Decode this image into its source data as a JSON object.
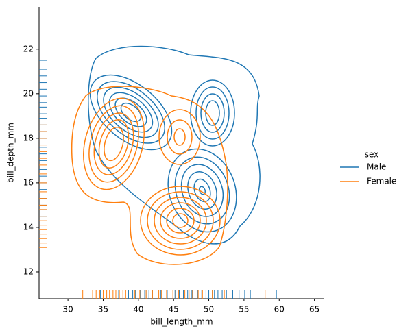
{
  "chart_data": {
    "type": "kde",
    "xlabel": "bill_length_mm",
    "ylabel": "bill_depth_mm",
    "xlim": [
      25.9,
      66.4
    ],
    "ylim": [
      10.8,
      23.9
    ],
    "xticks": [
      30,
      35,
      40,
      45,
      50,
      55,
      60,
      65
    ],
    "yticks": [
      12,
      14,
      16,
      18,
      20,
      22
    ],
    "legend_title": "sex",
    "legend": "right",
    "rug": true,
    "series": [
      {
        "name": "Male",
        "color": "#1f77b4",
        "rug_x": [
          34.6,
          37.2,
          38.6,
          39.2,
          39.6,
          40.3,
          40.9,
          41.1,
          41.5,
          42.0,
          42.8,
          43.2,
          44.1,
          45.2,
          45.8,
          46.4,
          47.0,
          47.6,
          48.4,
          49.0,
          49.6,
          50.0,
          50.5,
          50.8,
          51.3,
          51.9,
          52.5,
          53.4,
          54.3,
          55.1,
          55.9,
          59.6
        ],
        "rug_y": [
          14.5,
          14.8,
          15.0,
          15.3,
          15.7,
          16.0,
          16.3,
          16.6,
          17.0,
          17.3,
          17.6,
          18.0,
          18.3,
          18.6,
          18.9,
          19.1,
          19.4,
          19.6,
          19.9,
          20.2,
          20.5,
          20.8,
          21.1,
          21.5
        ]
      },
      {
        "name": "Female",
        "color": "#ff7f0e",
        "rug_x": [
          32.1,
          33.5,
          34.0,
          34.5,
          35.0,
          35.5,
          35.9,
          36.4,
          36.8,
          37.3,
          37.8,
          38.2,
          38.8,
          39.5,
          40.2,
          41.1,
          42.0,
          42.9,
          43.3,
          44.0,
          44.9,
          45.3,
          45.7,
          46.2,
          46.6,
          47.2,
          47.7,
          48.5,
          49.1,
          50.5,
          52.2,
          58.0
        ],
        "rug_y": [
          13.1,
          13.3,
          13.5,
          13.7,
          13.9,
          14.1,
          14.3,
          14.5,
          14.8,
          15.0,
          15.3,
          15.6,
          16.0,
          16.4,
          16.8,
          17.1,
          17.4,
          17.7,
          18.0,
          18.3,
          18.6
        ]
      }
    ]
  }
}
